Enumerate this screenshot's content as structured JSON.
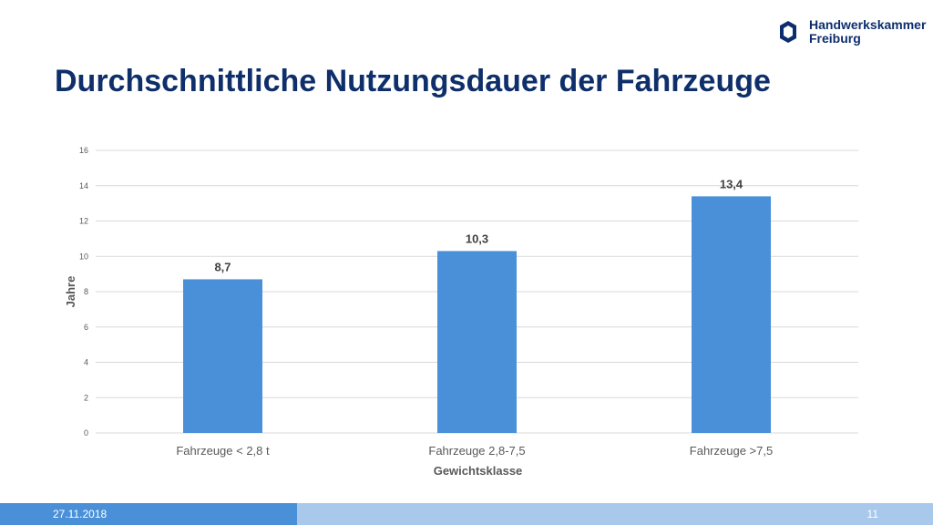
{
  "header": {
    "logo_line1": "Handwerkskammer",
    "logo_line2": "Freiburg",
    "title": "Durchschnittliche Nutzungsdauer der Fahrzeuge"
  },
  "chart_data": {
    "type": "bar",
    "title": "",
    "categories": [
      "Fahrzeuge < 2,8 t",
      "Fahrzeuge 2,8-7,5",
      "Fahrzeuge >7,5"
    ],
    "values": [
      8.7,
      10.3,
      13.4
    ],
    "data_labels": [
      "8,7",
      "10,3",
      "13,4"
    ],
    "xlabel": "Gewichtsklasse",
    "ylabel": "Jahre",
    "ylim": [
      0,
      16
    ],
    "yticks": [
      0,
      2,
      4,
      6,
      8,
      10,
      12,
      14,
      16
    ],
    "grid": true,
    "legend": "none",
    "bar_color": "#4a90d9"
  },
  "footer": {
    "date": "27.11.2018",
    "page": "11"
  },
  "colors": {
    "title": "#0f2f6b",
    "bar": "#4a90d9",
    "footer_dark": "#4a90d9",
    "footer_light": "#a9c9ec"
  }
}
